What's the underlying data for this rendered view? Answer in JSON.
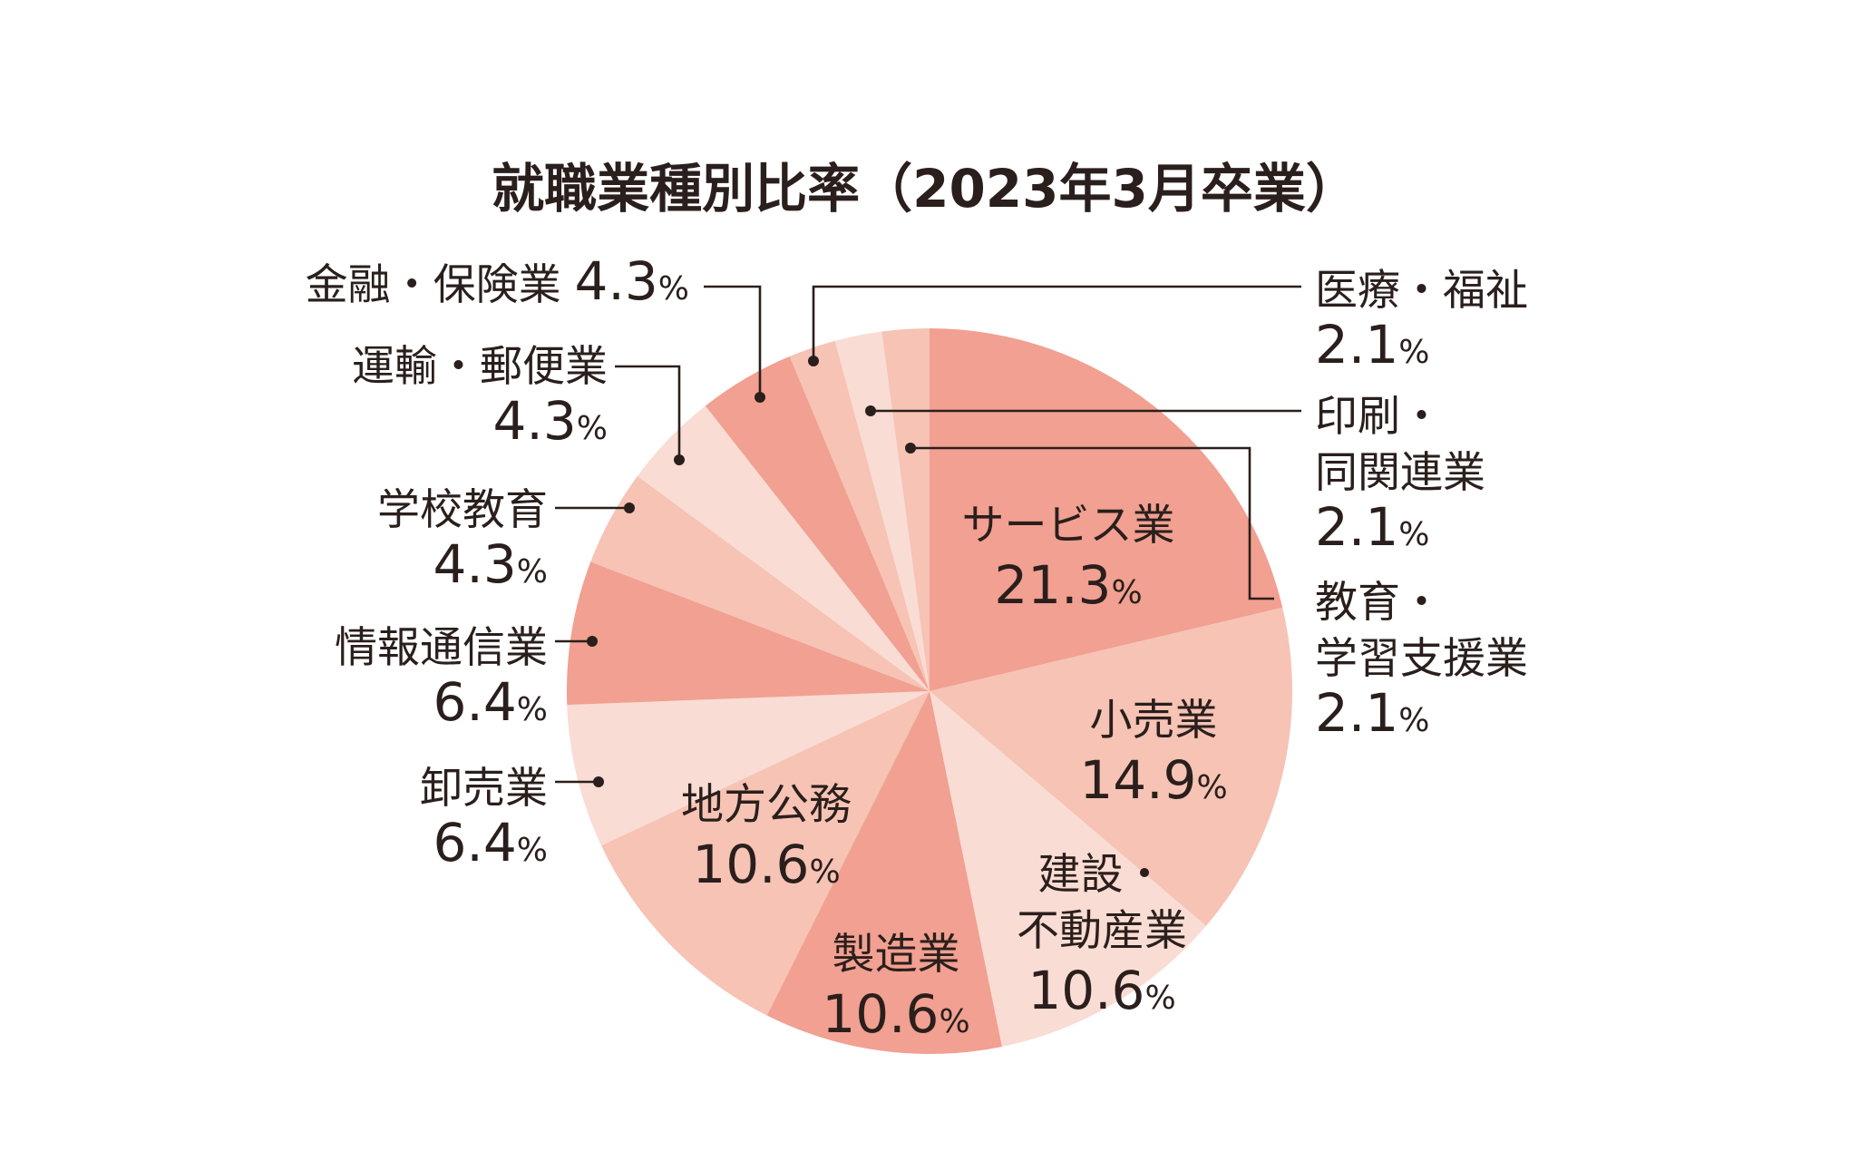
{
  "chart_data": {
    "type": "pie",
    "title": "就職業種別比率（2023年3月卒業）",
    "unit": "%",
    "slices": [
      {
        "label_lines": [
          "サービス業"
        ],
        "value": 21.3,
        "color": "#f1a091"
      },
      {
        "label_lines": [
          "小売業"
        ],
        "value": 14.9,
        "color": "#f6c3b5"
      },
      {
        "label_lines": [
          "建設・",
          "不動産業"
        ],
        "value": 10.6,
        "color": "#f9dcd3"
      },
      {
        "label_lines": [
          "製造業"
        ],
        "value": 10.6,
        "color": "#f1a091"
      },
      {
        "label_lines": [
          "地方公務"
        ],
        "value": 10.6,
        "color": "#f6c3b5"
      },
      {
        "label_lines": [
          "卸売業"
        ],
        "value": 6.4,
        "color": "#f9dcd3"
      },
      {
        "label_lines": [
          "情報通信業"
        ],
        "value": 6.4,
        "color": "#f1a091"
      },
      {
        "label_lines": [
          "学校教育"
        ],
        "value": 4.3,
        "color": "#f6c3b5"
      },
      {
        "label_lines": [
          "運輸・郵便業"
        ],
        "value": 4.3,
        "color": "#f9dcd3"
      },
      {
        "label_lines": [
          "金融・保険業"
        ],
        "value": 4.3,
        "color": "#f1a091"
      },
      {
        "label_lines": [
          "医療・福祉"
        ],
        "value": 2.1,
        "color": "#f6c3b5"
      },
      {
        "label_lines": [
          "印刷・",
          "同関連業"
        ],
        "value": 2.1,
        "color": "#f9dcd3"
      },
      {
        "label_lines": [
          "教育・",
          "学習支援業"
        ],
        "value": 2.1,
        "color": "#f6c3b5"
      }
    ]
  }
}
